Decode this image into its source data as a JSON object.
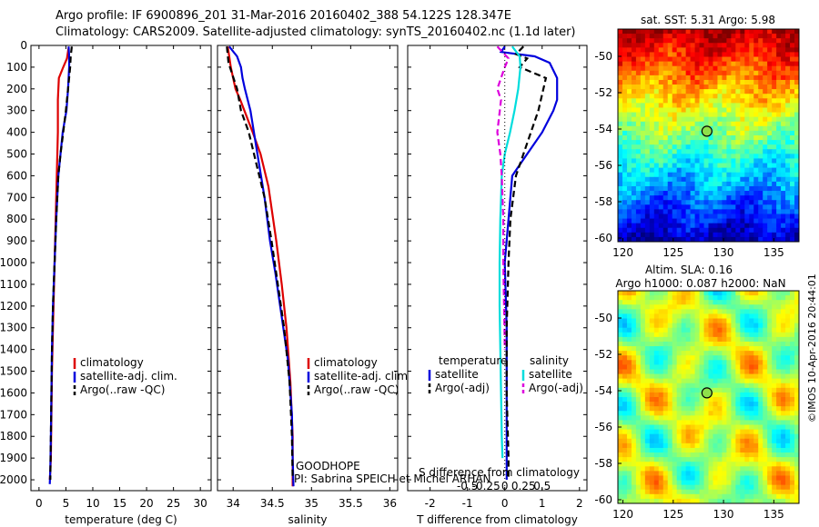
{
  "title_line1": "Argo profile: IF 6900896_201 31-Mar-2016 20160402_388 54.122S 128.347E",
  "title_line2": "Climatology: CARS2009. Satellite-adjusted climatology: synTS_20160402.nc (1.1d later)",
  "side_text": "©IMOS 10-Apr-2016 20:44:01",
  "project_label": "GOODHOPE",
  "pi_label": "PI: Sabrina SPEICH et Michel ARHAN",
  "colors": {
    "climatology": "#dd0000",
    "satellite": "#0000dd",
    "argo": "#000000",
    "sat_salinity": "#00dddd",
    "argo_salinity": "#dd00dd"
  },
  "chart_data": [
    {
      "id": "temperature",
      "type": "line",
      "xlabel": "temperature (deg C)",
      "ylabel": "",
      "xlim": [
        -1.5,
        32
      ],
      "ylim": [
        2050,
        0
      ],
      "xticks": [
        0,
        5,
        10,
        15,
        20,
        25,
        30
      ],
      "yticks": [
        0,
        100,
        200,
        300,
        400,
        500,
        600,
        700,
        800,
        900,
        1000,
        1100,
        1200,
        1300,
        1400,
        1500,
        1600,
        1700,
        1800,
        1900,
        2000
      ],
      "legend": [
        "climatology",
        "satellite-adj. clim.",
        "Argo(..raw -QC)"
      ],
      "legend_loc": "lower-right",
      "series": [
        {
          "name": "climatology",
          "color": "#dd0000",
          "style": "solid",
          "x": [
            5.5,
            5.2,
            4.5,
            3.7,
            3.5,
            3.5,
            3.4,
            3.2,
            3.0,
            2.8,
            2.6,
            2.4,
            2.3,
            2.2,
            2.1,
            2.0
          ],
          "y": [
            10,
            60,
            100,
            150,
            250,
            400,
            500,
            700,
            900,
            1100,
            1300,
            1500,
            1700,
            1900,
            1960,
            2000
          ]
        },
        {
          "name": "satellite-adj. clim.",
          "color": "#0000dd",
          "style": "solid",
          "x": [
            5.5,
            5.6,
            5.6,
            5.4,
            5.1,
            4.4,
            4.0,
            3.6,
            3.2,
            2.9,
            2.6,
            2.4,
            2.3,
            2.2,
            2.1,
            2.0
          ],
          "y": [
            5,
            50,
            100,
            200,
            300,
            400,
            500,
            600,
            800,
            1000,
            1200,
            1400,
            1600,
            1800,
            1950,
            2020
          ]
        },
        {
          "name": "Argo(..raw -QC)",
          "color": "#000000",
          "style": "dashed",
          "x": [
            6.1,
            5.9,
            5.8,
            5.4,
            5.0,
            4.5,
            4.0,
            3.6,
            3.2,
            2.9,
            2.6,
            2.4,
            2.3,
            2.2,
            2.1
          ],
          "y": [
            5,
            50,
            100,
            200,
            300,
            400,
            500,
            600,
            800,
            1000,
            1200,
            1400,
            1600,
            1800,
            2000
          ]
        }
      ]
    },
    {
      "id": "salinity",
      "type": "line",
      "xlabel": "salinity",
      "ylabel": "",
      "xlim": [
        33.8,
        36.1
      ],
      "ylim": [
        2050,
        0
      ],
      "xticks": [
        34,
        34.5,
        35,
        35.5,
        36
      ],
      "xticklabels": [
        "34",
        "34.5",
        "35",
        "35.5",
        "36"
      ],
      "legend": [
        "climatology",
        "satellite-adj. clim.",
        "Argo(..raw -QC)"
      ],
      "legend_loc": "lower-right",
      "series": [
        {
          "name": "climatology",
          "color": "#dd0000",
          "style": "solid",
          "x": [
            33.93,
            33.95,
            33.97,
            34.0,
            34.03,
            34.09,
            34.25,
            34.35,
            34.45,
            34.55,
            34.62,
            34.68,
            34.73,
            34.76,
            34.76,
            34.76
          ],
          "y": [
            5,
            50,
            100,
            150,
            200,
            250,
            400,
            500,
            650,
            900,
            1100,
            1300,
            1550,
            1800,
            1950,
            2030
          ]
        },
        {
          "name": "satellite-adj. clim.",
          "color": "#0000dd",
          "style": "solid",
          "x": [
            33.95,
            34.05,
            34.1,
            34.12,
            34.15,
            34.22,
            34.31,
            34.4,
            34.47,
            34.54,
            34.62,
            34.7,
            34.75,
            34.76,
            34.77
          ],
          "y": [
            5,
            50,
            100,
            150,
            200,
            300,
            500,
            700,
            900,
            1050,
            1250,
            1450,
            1700,
            1900,
            2030
          ]
        },
        {
          "name": "Argo(..raw -QC)",
          "color": "#000000",
          "style": "dashed",
          "x": [
            33.92,
            33.94,
            34.05,
            34.1,
            34.2,
            34.3,
            34.4,
            34.49,
            34.57,
            34.65,
            34.72,
            34.75,
            34.76
          ],
          "y": [
            5,
            80,
            200,
            300,
            400,
            550,
            700,
            900,
            1100,
            1300,
            1550,
            1800,
            2000
          ]
        }
      ]
    },
    {
      "id": "differences",
      "type": "line",
      "xlabel": "T difference from climatology",
      "xlabel_top": "S difference from climatology",
      "xlim": [
        -2.6,
        2.2
      ],
      "ylim": [
        2050,
        0
      ],
      "xticks": [
        -2,
        -1,
        0,
        1,
        2
      ],
      "xticklabels": [
        "-2",
        "-1",
        "0",
        "1",
        "2"
      ],
      "sticks": [
        -0.5,
        -0.25,
        0,
        0.25,
        0.5
      ],
      "sticklabels": [
        "-0.5",
        "-0.25",
        "0",
        "0.25",
        "0.5"
      ],
      "s_range": [
        -1.3,
        1.1
      ],
      "legend_temperature_title": "temperature",
      "legend_salinity_title": "salinity",
      "legend_temperature": [
        "satellite",
        "Argo(-adj)"
      ],
      "legend_salinity": [
        "satellite",
        "Argo(-adj)"
      ],
      "legend_loc": "lower-center",
      "series": [
        {
          "name": "T satellite",
          "color": "#0000dd",
          "style": "solid",
          "units": "T",
          "x": [
            0.0,
            -0.1,
            0.8,
            1.2,
            1.4,
            1.4,
            1.3,
            1.0,
            0.6,
            0.2,
            0.1,
            0.0,
            0.05,
            0.05,
            0.05,
            0.05
          ],
          "y": [
            5,
            30,
            50,
            80,
            150,
            250,
            300,
            400,
            500,
            600,
            800,
            1000,
            1300,
            1600,
            1900,
            2000
          ]
        },
        {
          "name": "T Argo(-adj)",
          "color": "#000000",
          "style": "dashed",
          "units": "T",
          "x": [
            0.5,
            0.3,
            0.6,
            0.4,
            1.1,
            0.9,
            0.7,
            0.5,
            0.3,
            0.15,
            0.1,
            0.05,
            0.05,
            0.1,
            0.1
          ],
          "y": [
            5,
            40,
            60,
            100,
            150,
            300,
            400,
            500,
            600,
            800,
            1000,
            1300,
            1600,
            1900,
            2000
          ]
        },
        {
          "name": "S satellite",
          "color": "#00dddd",
          "style": "solid",
          "units": "S",
          "x": [
            0.1,
            0.2,
            0.21,
            0.18,
            0.13,
            0.07,
            0.0,
            -0.04,
            -0.06,
            -0.07,
            -0.07,
            -0.06,
            -0.05,
            -0.04,
            -0.03
          ],
          "y": [
            5,
            50,
            100,
            200,
            300,
            400,
            500,
            600,
            800,
            1000,
            1200,
            1400,
            1600,
            1800,
            1900
          ]
        },
        {
          "name": "S Argo(-adj)",
          "color": "#dd00dd",
          "style": "dashed",
          "units": "S",
          "x": [
            -0.1,
            0.05,
            0.0,
            -0.1,
            -0.05,
            -0.1,
            -0.06,
            -0.04,
            -0.02,
            -0.02,
            -0.01,
            0.0
          ],
          "y": [
            5,
            60,
            100,
            200,
            250,
            400,
            500,
            600,
            800,
            1000,
            1200,
            1400
          ]
        }
      ]
    },
    {
      "id": "sst_map",
      "type": "heatmap",
      "title": "sat. SST: 5.31 Argo: 5.98",
      "xlim": [
        119.5,
        137.5
      ],
      "ylim": [
        -60.2,
        -48.5
      ],
      "xticks": [
        120,
        125,
        130,
        135
      ],
      "yticks": [
        -50,
        -52,
        -54,
        -56,
        -58,
        -60
      ],
      "marker": {
        "lon": 128.35,
        "lat": -54.12
      }
    },
    {
      "id": "sla_map",
      "type": "heatmap",
      "title_line1": "Altim. SLA: 0.16",
      "title_line2": "Argo h1000: 0.087 h2000: NaN",
      "xlim": [
        119.5,
        137.5
      ],
      "ylim": [
        -60.2,
        -48.5
      ],
      "xticks": [
        120,
        125,
        130,
        135
      ],
      "yticks": [
        -50,
        -52,
        -54,
        -56,
        -58,
        -60
      ],
      "marker": {
        "lon": 128.35,
        "lat": -54.12
      }
    }
  ]
}
